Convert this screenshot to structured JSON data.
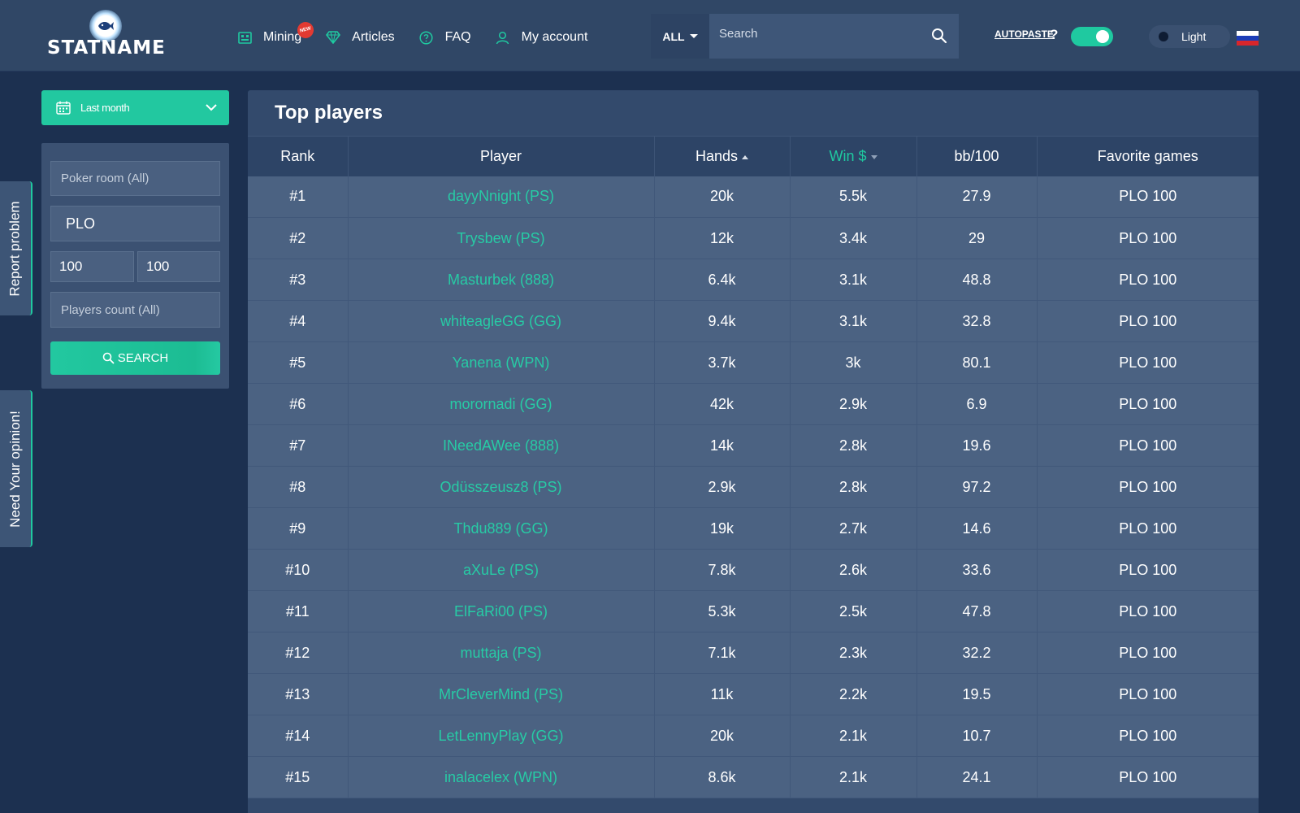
{
  "header": {
    "logo_text": "STATNAME",
    "nav": [
      {
        "label": "Mining",
        "icon": "mining-icon",
        "badge": "NEW"
      },
      {
        "label": "Articles",
        "icon": "diamond-icon"
      },
      {
        "label": "FAQ",
        "icon": "question-circle-icon"
      },
      {
        "label": "My account",
        "icon": "user-icon"
      }
    ],
    "search": {
      "scope": "ALL",
      "placeholder": "Search"
    },
    "autopaste_label": "AUTOPASTE",
    "autopaste_help": "?",
    "autopaste_enabled": true,
    "theme_label": "Light",
    "language_flag_colors": [
      "#ffffff",
      "#1c3eb8",
      "#d8262b"
    ]
  },
  "side_tabs": {
    "report": "Report problem",
    "opinion": "Need Your opinion!"
  },
  "filters": {
    "period": "Last month",
    "poker_room_placeholder": "Poker room (All)",
    "game": "PLO",
    "limit_min": "100",
    "limit_max": "100",
    "players_count_placeholder": "Players count (All)",
    "search_button": "SEARCH"
  },
  "table": {
    "title": "Top players",
    "columns": [
      "Rank",
      "Player",
      "Hands",
      "Win $",
      "bb/100",
      "Favorite games"
    ],
    "rows": [
      {
        "rank": "#1",
        "player": "dayyNnight (PS)",
        "hands": "20k",
        "win": "5.5k",
        "bb": "27.9",
        "games": "PLO 100"
      },
      {
        "rank": "#2",
        "player": "Trysbew (PS)",
        "hands": "12k",
        "win": "3.4k",
        "bb": "29",
        "games": "PLO 100"
      },
      {
        "rank": "#3",
        "player": "Masturbek (888)",
        "hands": "6.4k",
        "win": "3.1k",
        "bb": "48.8",
        "games": "PLO 100"
      },
      {
        "rank": "#4",
        "player": "whiteagleGG (GG)",
        "hands": "9.4k",
        "win": "3.1k",
        "bb": "32.8",
        "games": "PLO 100"
      },
      {
        "rank": "#5",
        "player": "Yanena (WPN)",
        "hands": "3.7k",
        "win": "3k",
        "bb": "80.1",
        "games": "PLO 100"
      },
      {
        "rank": "#6",
        "player": "morornadi (GG)",
        "hands": "42k",
        "win": "2.9k",
        "bb": "6.9",
        "games": "PLO 100"
      },
      {
        "rank": "#7",
        "player": "INeedAWee (888)",
        "hands": "14k",
        "win": "2.8k",
        "bb": "19.6",
        "games": "PLO 100"
      },
      {
        "rank": "#8",
        "player": "Odüsszeusz8 (PS)",
        "hands": "2.9k",
        "win": "2.8k",
        "bb": "97.2",
        "games": "PLO 100"
      },
      {
        "rank": "#9",
        "player": "Thdu889 (GG)",
        "hands": "19k",
        "win": "2.7k",
        "bb": "14.6",
        "games": "PLO 100"
      },
      {
        "rank": "#10",
        "player": "aXuLe (PS)",
        "hands": "7.8k",
        "win": "2.6k",
        "bb": "33.6",
        "games": "PLO 100"
      },
      {
        "rank": "#11",
        "player": "ElFaRi00 (PS)",
        "hands": "5.3k",
        "win": "2.5k",
        "bb": "47.8",
        "games": "PLO 100"
      },
      {
        "rank": "#12",
        "player": "muttaja (PS)",
        "hands": "7.1k",
        "win": "2.3k",
        "bb": "32.2",
        "games": "PLO 100"
      },
      {
        "rank": "#13",
        "player": "MrCleverMind (PS)",
        "hands": "11k",
        "win": "2.2k",
        "bb": "19.5",
        "games": "PLO 100"
      },
      {
        "rank": "#14",
        "player": "LetLennyPlay (GG)",
        "hands": "20k",
        "win": "2.1k",
        "bb": "10.7",
        "games": "PLO 100"
      },
      {
        "rank": "#15",
        "player": "inalacelex (WPN)",
        "hands": "8.6k",
        "win": "2.1k",
        "bb": "24.1",
        "games": "PLO 100"
      }
    ]
  },
  "colors": {
    "accent": "#1fc9a0",
    "background": "#1c3050",
    "panel": "#334a6c",
    "row": "#4b6282",
    "badge": "#e23a32"
  }
}
